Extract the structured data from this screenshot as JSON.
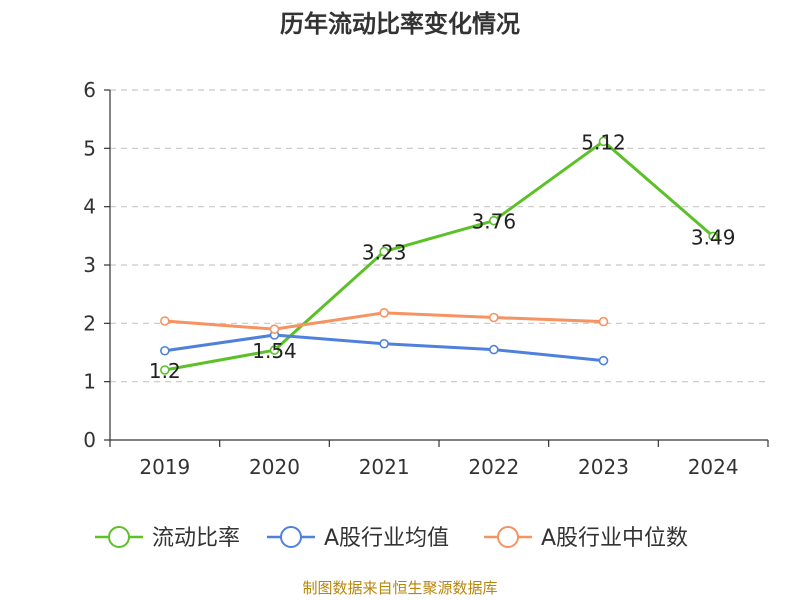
{
  "source": "制图数据来自恒生聚源数据库",
  "chart_data": {
    "type": "line",
    "title": "历年流动比率变化情况",
    "xlabel": "",
    "ylabel": "",
    "categories": [
      "2019",
      "2020",
      "2021",
      "2022",
      "2023",
      "2024"
    ],
    "ylim": [
      0,
      6
    ],
    "yticks": [
      0,
      1,
      2,
      3,
      4,
      5,
      6
    ],
    "grid": true,
    "legend_position": "bottom",
    "series": [
      {
        "name": "流动比率",
        "color": "#5cc028",
        "values": [
          1.2,
          1.54,
          3.23,
          3.76,
          5.12,
          3.49
        ],
        "data_labels": [
          "1.2",
          "1.54",
          "3.23",
          "3.76",
          "5.12",
          "3.49"
        ]
      },
      {
        "name": "A股行业均值",
        "color": "#4f81dc",
        "values": [
          1.53,
          1.8,
          1.65,
          1.55,
          1.36,
          null
        ]
      },
      {
        "name": "A股行业中位数",
        "color": "#f59363",
        "values": [
          2.04,
          1.9,
          2.18,
          2.1,
          2.03,
          null
        ]
      }
    ]
  }
}
